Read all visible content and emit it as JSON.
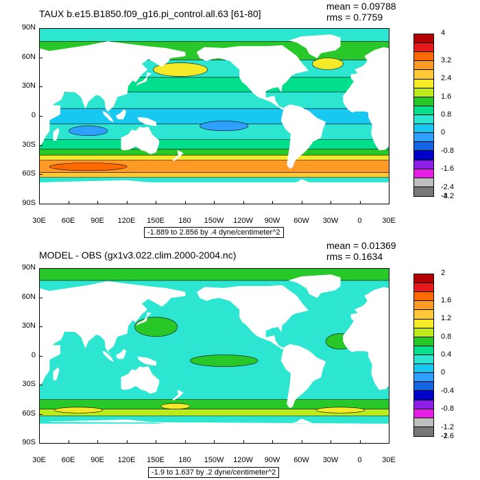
{
  "chart_data": [
    {
      "type": "heatmap",
      "title": "TAUX b.e15.B1850.f09_g16.pi_control.all.63 [61-80]",
      "mean_label": "mean = 0.09788",
      "rms_label": "rms = 0.7759",
      "caption": "-1.889 to 2.856 by .4 dyne/centimeter^2",
      "y_ticks": [
        "90N",
        "60N",
        "30N",
        "0",
        "30S",
        "60S",
        "90S"
      ],
      "x_ticks": [
        "30E",
        "60E",
        "90E",
        "120E",
        "150E",
        "180",
        "150W",
        "120W",
        "90W",
        "60W",
        "30W",
        "0",
        "30E"
      ],
      "colorbar_labels": [
        "4",
        "3.2",
        "2.4",
        "1.6",
        "0.8",
        "0",
        "-0.8",
        "-1.6",
        "-2.4",
        "-3.2",
        "-4"
      ],
      "colorbar_colors": [
        "#b40000",
        "#e61a1a",
        "#ff6a00",
        "#ff9a26",
        "#ffc837",
        "#f4ea28",
        "#bdea1a",
        "#28c828",
        "#00e08c",
        "#2ce6d2",
        "#17c8f0",
        "#2fa0ff",
        "#1464e6",
        "#0000c8",
        "#8c1ee6",
        "#e61ee6",
        "#bebebe",
        "#787878"
      ],
      "bands": [
        {
          "lat_range": [
            90,
            77
          ],
          "color": "#2ce6d2"
        },
        {
          "lat_range": [
            77,
            58
          ],
          "color": "#28c828"
        },
        {
          "lat_range": [
            58,
            40
          ],
          "color": "#2ce6d2"
        },
        {
          "lat_range": [
            40,
            25
          ],
          "color": "#00e08c"
        },
        {
          "lat_range": [
            25,
            8
          ],
          "color": "#2ce6d2"
        },
        {
          "lat_range": [
            8,
            -8
          ],
          "color": "#17c8f0"
        },
        {
          "lat_range": [
            -8,
            -24
          ],
          "color": "#2ce6d2"
        },
        {
          "lat_range": [
            -24,
            -34
          ],
          "color": "#00e08c"
        },
        {
          "lat_range": [
            -34,
            -40
          ],
          "color": "#28c828"
        },
        {
          "lat_range": [
            -40,
            -45
          ],
          "color": "#f4ea28"
        },
        {
          "lat_range": [
            -45,
            -58
          ],
          "color": "#ff9a26"
        },
        {
          "lat_range": [
            -58,
            -63
          ],
          "color": "#ffc837"
        },
        {
          "lat_range": [
            -63,
            -68
          ],
          "color": "#2ce6d2"
        }
      ],
      "patches": [
        {
          "lon": 175,
          "lat": 48,
          "rlon": 28,
          "rlat": 7,
          "color": "#f4ea28"
        },
        {
          "lon": -33,
          "lat": 54,
          "rlon": 16,
          "rlat": 6,
          "color": "#f4ea28"
        },
        {
          "lon": 80,
          "lat": -52,
          "rlon": 40,
          "rlat": 4,
          "color": "#ff6a00"
        },
        {
          "lon": -140,
          "lat": -10,
          "rlon": 25,
          "rlat": 5,
          "color": "#2fa0ff"
        },
        {
          "lon": 80,
          "lat": -15,
          "rlon": 20,
          "rlat": 5,
          "color": "#2fa0ff"
        }
      ]
    },
    {
      "type": "heatmap",
      "title": "MODEL - OBS (gx1v3.022.clim.2000-2004.nc)",
      "mean_label": "mean = 0.01369",
      "rms_label": "rms = 0.1634",
      "caption": "-1.9 to 1.637 by .2 dyne/centimeter^2",
      "y_ticks": [
        "90N",
        "60N",
        "30N",
        "0",
        "30S",
        "60S",
        "90S"
      ],
      "x_ticks": [
        "30E",
        "60E",
        "90E",
        "120E",
        "150E",
        "180",
        "150W",
        "120W",
        "90W",
        "60W",
        "30W",
        "0",
        "30E"
      ],
      "colorbar_labels": [
        "2",
        "1.6",
        "1.2",
        "0.8",
        "0.4",
        "0",
        "-0.4",
        "-0.8",
        "-1.2",
        "-1.6",
        "-2"
      ],
      "colorbar_colors": [
        "#b40000",
        "#e61a1a",
        "#ff6a00",
        "#ff9a26",
        "#ffc837",
        "#f4ea28",
        "#bdea1a",
        "#28c828",
        "#00e08c",
        "#2ce6d2",
        "#17c8f0",
        "#2fa0ff",
        "#1464e6",
        "#0000c8",
        "#8c1ee6",
        "#e61ee6",
        "#bebebe",
        "#787878"
      ],
      "bands": [
        {
          "lat_range": [
            90,
            78
          ],
          "color": "#28c828"
        },
        {
          "lat_range": [
            78,
            -45
          ],
          "color": "#2ce6d2"
        },
        {
          "lat_range": [
            -45,
            -55
          ],
          "color": "#28c828"
        },
        {
          "lat_range": [
            -55,
            -62
          ],
          "color": "#bdea1a"
        },
        {
          "lat_range": [
            -62,
            -70
          ],
          "color": "#2ce6d2"
        }
      ],
      "patches": [
        {
          "lon": 150,
          "lat": 30,
          "rlon": 22,
          "rlat": 10,
          "color": "#28c828"
        },
        {
          "lon": -140,
          "lat": -5,
          "rlon": 35,
          "rlat": 6,
          "color": "#28c828"
        },
        {
          "lon": -20,
          "lat": 15,
          "rlon": 15,
          "rlat": 8,
          "color": "#28c828"
        },
        {
          "lon": 70,
          "lat": -56,
          "rlon": 25,
          "rlat": 3,
          "color": "#f4ea28"
        },
        {
          "lon": -20,
          "lat": -56,
          "rlon": 25,
          "rlat": 3,
          "color": "#f4ea28"
        },
        {
          "lon": 170,
          "lat": -52,
          "rlon": 15,
          "rlat": 3,
          "color": "#f4ea28"
        }
      ]
    }
  ]
}
